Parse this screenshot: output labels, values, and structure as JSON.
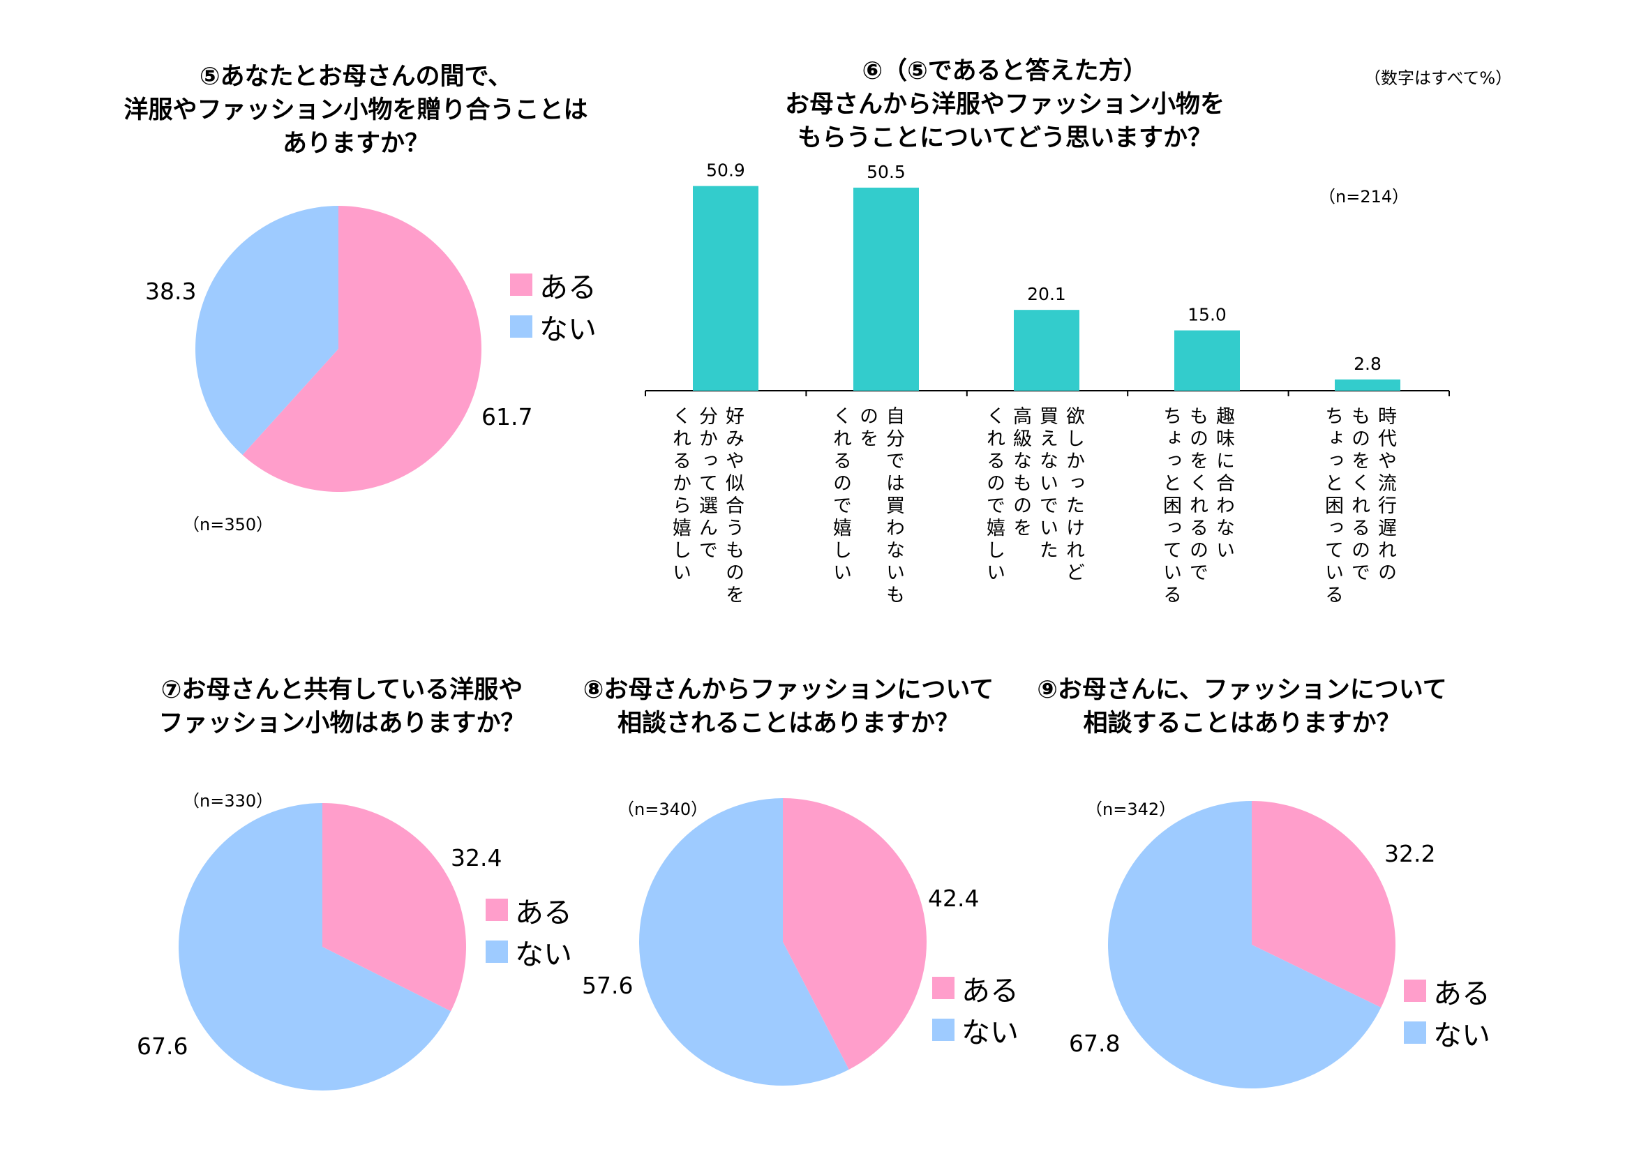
{
  "colors": {
    "aru": "#FF9ECB",
    "nai": "#9ECBFF",
    "bar": "#33CCCC",
    "axis": "#000000"
  },
  "legend": {
    "aru": "ある",
    "nai": "ない"
  },
  "unit_note": "（数字はすべて%）",
  "q5": {
    "title_lines": [
      "⑤あなたとお母さんの間で、",
      "洋服やファッション小物を贈り合うことは",
      "ありますか？"
    ],
    "n": "（n=350）",
    "value_labels": {
      "aru": "61.7",
      "nai": "38.3"
    }
  },
  "q6": {
    "title_lines": [
      "⑥（⑤であると答えた方）",
      "お母さんから洋服やファッション小物を",
      "もらうことについてどう思いますか？"
    ],
    "n": "（n=214）",
    "value_labels": [
      "50.9",
      "50.5",
      "20.1",
      "15.0",
      "2.8"
    ],
    "category_labels": [
      "好みや似合うものを\n分かって選んで\nくれるから嬉しい",
      "自分では買わないも\nのを\nくれるので嬉しい",
      "欲しかったけれど\n買えないでいた\n高級なものを\nくれるので嬉しい",
      "趣味に合わない\nものをくれるので\nちょっと困っている",
      "時代や流行遅れの\nものをくれるので\nちょっと困っている"
    ]
  },
  "q7": {
    "title_lines": [
      "⑦お母さんと共有している洋服や",
      "ファッション小物はありますか？"
    ],
    "n": "（n=330）",
    "value_labels": {
      "aru": "32.4",
      "nai": "67.6"
    }
  },
  "q8": {
    "title_lines": [
      "⑧お母さんからファッションについて",
      "相談されることはありますか？"
    ],
    "n": "（n=340）",
    "value_labels": {
      "aru": "42.4",
      "nai": "57.6"
    }
  },
  "q9": {
    "title_lines": [
      "⑨お母さんに、ファッションについて",
      "相談することはありますか？"
    ],
    "n": "（n=342）",
    "value_labels": {
      "aru": "32.2",
      "nai": "67.8"
    }
  },
  "chart_data": [
    {
      "type": "pie",
      "title": "⑤あなたとお母さんの間で、洋服やファッション小物を贈り合うことはありますか？",
      "categories": [
        "ある",
        "ない"
      ],
      "values": [
        61.7,
        38.3
      ],
      "n": 350,
      "unit": "%",
      "legend": "right"
    },
    {
      "type": "bar",
      "title": "⑥（⑤であると答えた方）お母さんから洋服やファッション小物をもらうことについてどう思いますか？",
      "categories": [
        "好みや似合うものを分かって選んでくれるから嬉しい",
        "自分では買わないものをくれるので嬉しい",
        "欲しかったけれど買えないでいた高級なものをくれるので嬉しい",
        "趣味に合わないものをくれるのでちょっと困っている",
        "時代や流行遅れのものをくれるのでちょっと困っている"
      ],
      "values": [
        50.9,
        50.5,
        20.1,
        15.0,
        2.8
      ],
      "n": 214,
      "unit": "%",
      "ylim": [
        0,
        55
      ],
      "grid": false
    },
    {
      "type": "pie",
      "title": "⑦お母さんと共有している洋服やファッション小物はありますか？",
      "categories": [
        "ある",
        "ない"
      ],
      "values": [
        32.4,
        67.6
      ],
      "n": 330,
      "unit": "%",
      "legend": "right"
    },
    {
      "type": "pie",
      "title": "⑧お母さんからファッションについて相談されることはありますか？",
      "categories": [
        "ある",
        "ない"
      ],
      "values": [
        42.4,
        57.6
      ],
      "n": 340,
      "unit": "%",
      "legend": "bottom-right"
    },
    {
      "type": "pie",
      "title": "⑨お母さんに、ファッションについて相談することはありますか？",
      "categories": [
        "ある",
        "ない"
      ],
      "values": [
        32.2,
        67.8
      ],
      "n": 342,
      "unit": "%",
      "legend": "bottom-right"
    }
  ]
}
